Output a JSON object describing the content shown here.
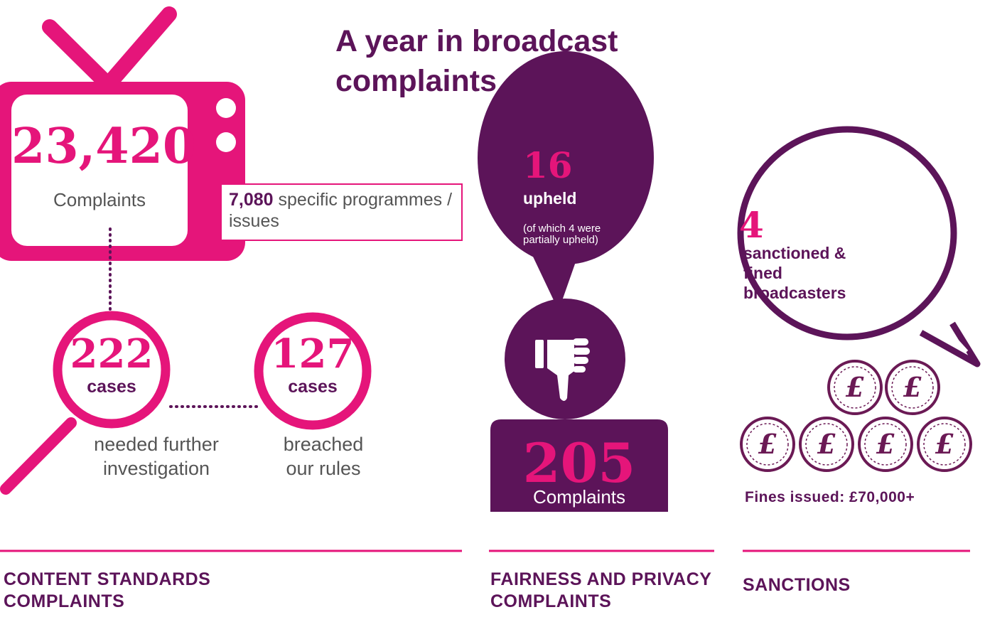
{
  "title": "A year in broadcast complaints",
  "content_standards": {
    "total": "23,420",
    "total_label": "Complaints",
    "programmes_count": "7,080",
    "programmes_label": "specific programmes / issues",
    "investigated": {
      "count": "222",
      "unit": "cases",
      "label": "needed further investigation"
    },
    "breached": {
      "count": "127",
      "unit": "cases",
      "label": "breached our rules"
    },
    "heading": "CONTENT STANDARDS COMPLAINTS"
  },
  "fairness_privacy": {
    "upheld_count": "16",
    "upheld_label": "upheld",
    "upheld_note": "(of which 4 were partially upheld)",
    "total": "205",
    "total_label": "Complaints",
    "heading": "FAIRNESS AND PRIVACY COMPLAINTS"
  },
  "sanctions": {
    "count": "4",
    "label": "sanctioned & fined broadcasters",
    "coin_symbol": "£",
    "fines": "Fines issued: £70,000+",
    "heading": "SANCTIONS"
  }
}
